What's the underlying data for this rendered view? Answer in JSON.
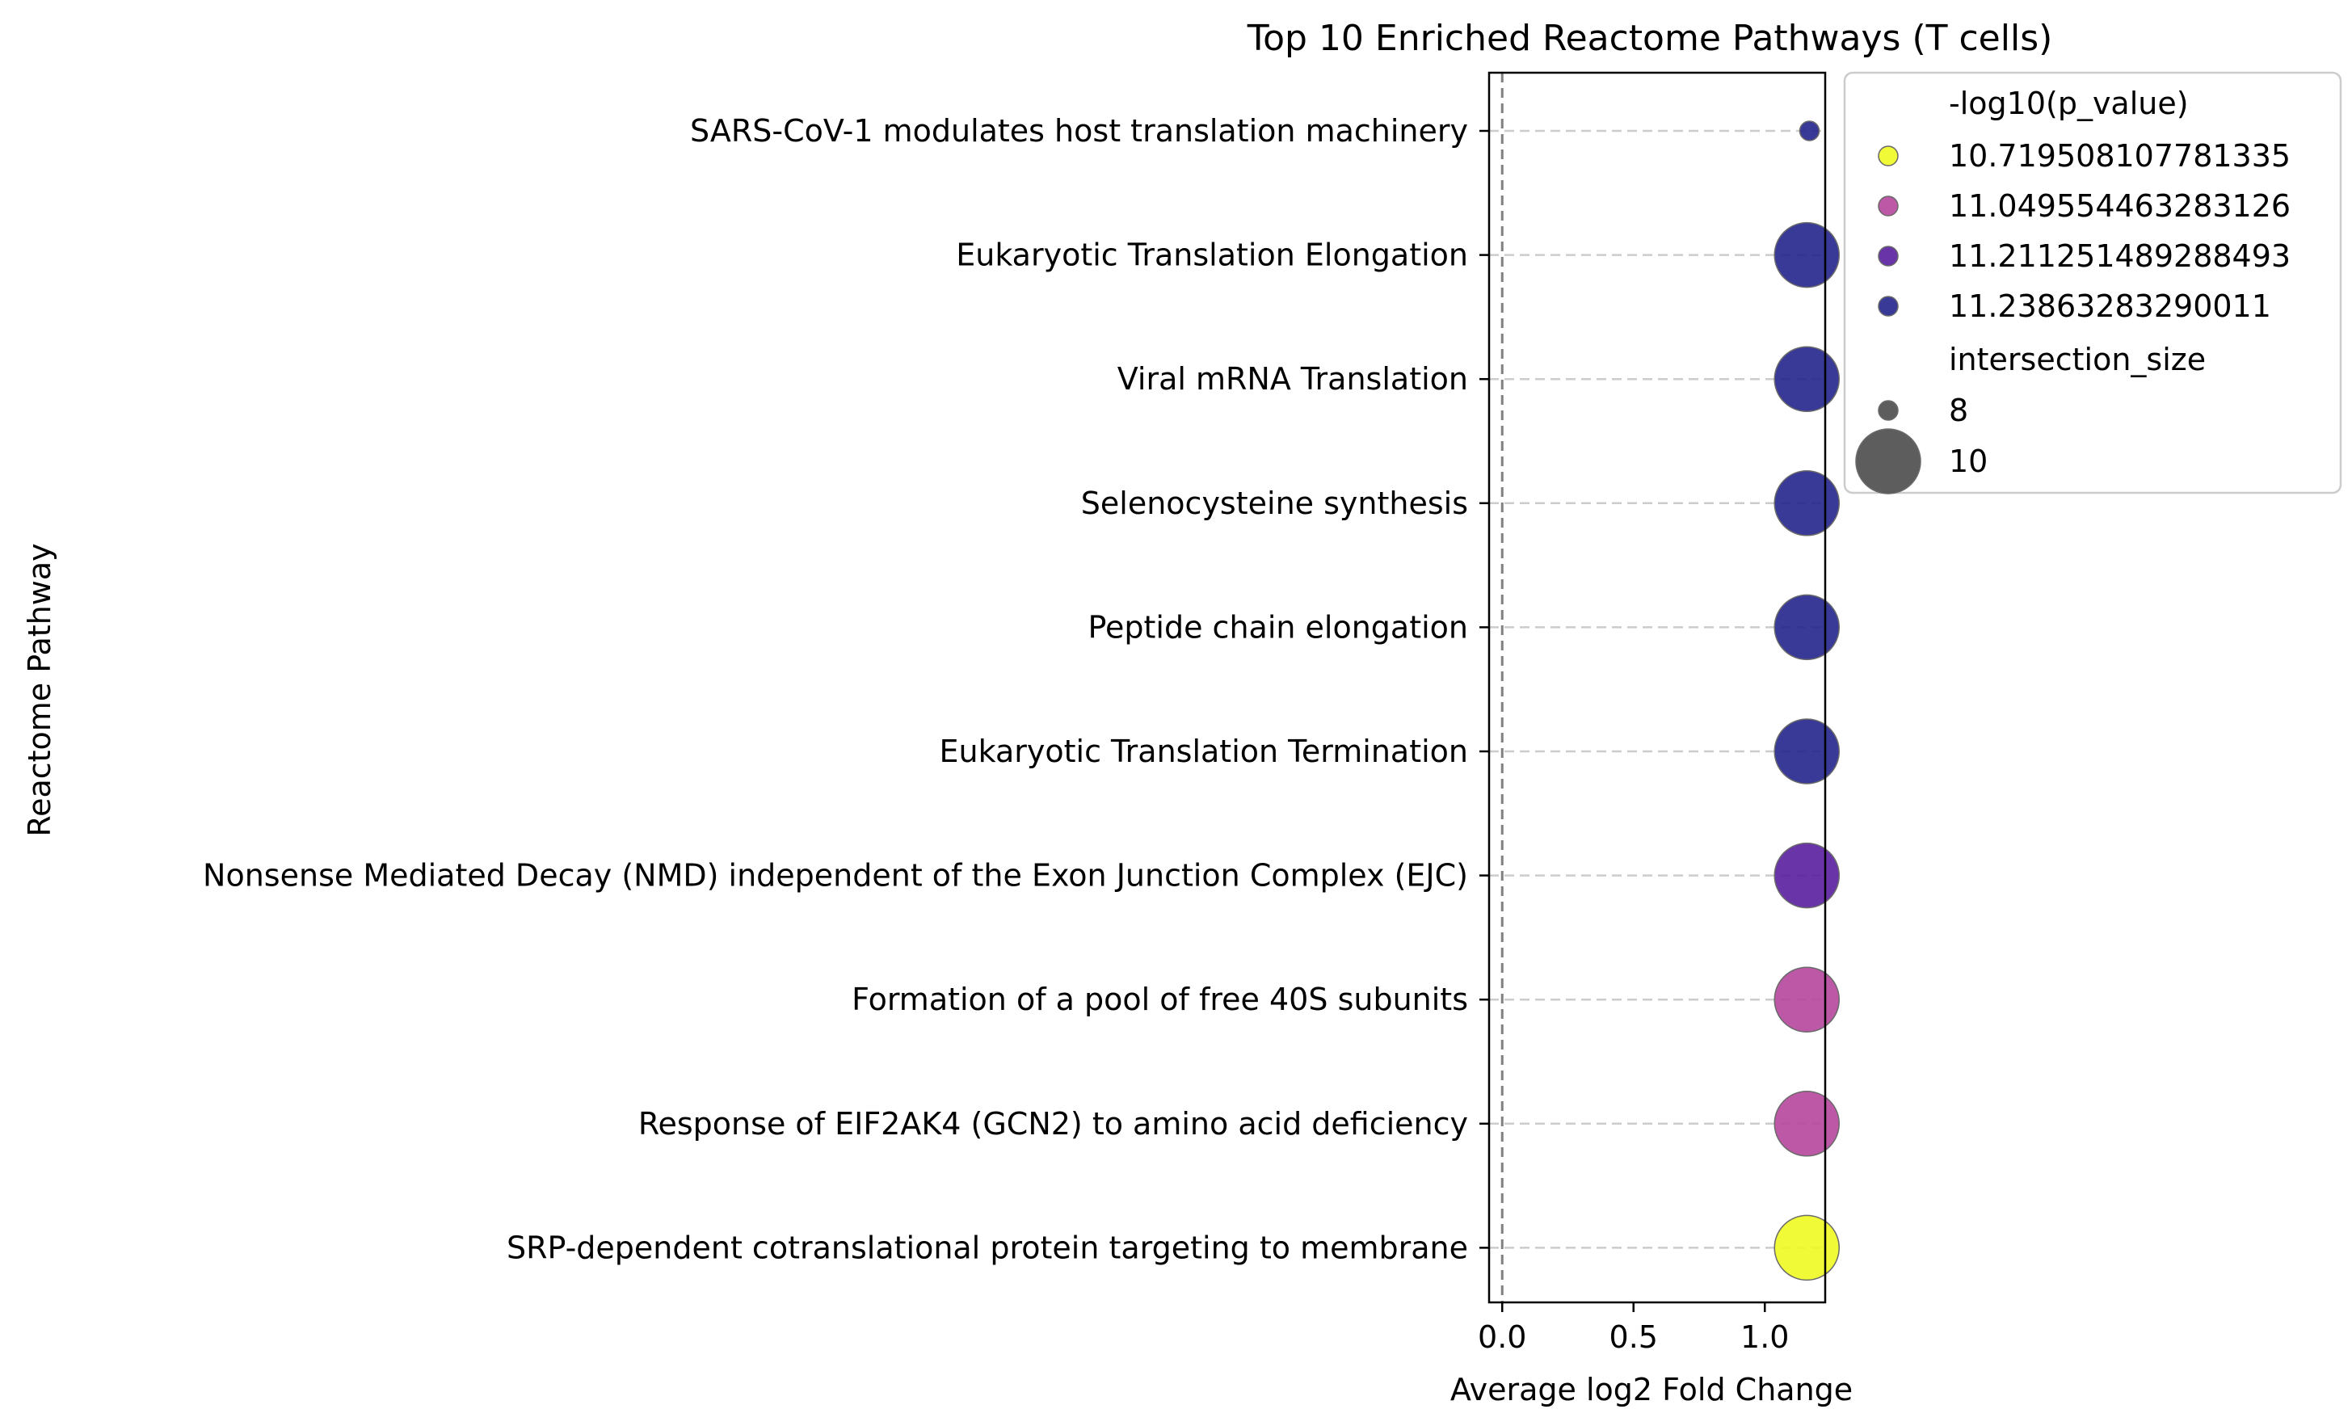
{
  "chart_data": {
    "type": "scatter",
    "title": "Top 10 Enriched Reactome Pathways (T cells)",
    "xlabel": "Average log2 Fold Change",
    "ylabel": "Reactome Pathway",
    "xlim": [
      -0.05,
      1.23
    ],
    "xticks": [
      {
        "value": 0.0,
        "label": "0.0"
      },
      {
        "value": 0.5,
        "label": "0.5"
      },
      {
        "value": 1.0,
        "label": "1.0"
      }
    ],
    "reference_line_x": 0,
    "grid": "horizontal dashed at each category",
    "legend_placement": "outside-upper-right",
    "color_legend": {
      "title": "-log10(p_value)",
      "entries": [
        {
          "label": "10.719508107781335",
          "color": "#f0f921"
        },
        {
          "label": "11.049554463283126",
          "color": "#b6469c"
        },
        {
          "label": "11.211251489288493",
          "color": "#5a1ea0"
        },
        {
          "label": "11.23863283290011",
          "color": "#23238c"
        }
      ]
    },
    "size_legend": {
      "title": "intersection_size",
      "entries": [
        {
          "label": "8",
          "size": 8
        },
        {
          "label": "10",
          "size": 10
        }
      ]
    },
    "points": [
      {
        "pathway": "SARS-CoV-1 modulates host translation machinery",
        "x": 1.17,
        "neglog10p": 11.23863283290011,
        "size": 8,
        "color": "#23238c"
      },
      {
        "pathway": "Eukaryotic Translation Elongation",
        "x": 1.16,
        "neglog10p": 11.23863283290011,
        "size": 10,
        "color": "#23238c"
      },
      {
        "pathway": "Viral mRNA Translation",
        "x": 1.16,
        "neglog10p": 11.23863283290011,
        "size": 10,
        "color": "#23238c"
      },
      {
        "pathway": "Selenocysteine synthesis",
        "x": 1.16,
        "neglog10p": 11.23863283290011,
        "size": 10,
        "color": "#23238c"
      },
      {
        "pathway": "Peptide chain elongation",
        "x": 1.16,
        "neglog10p": 11.23863283290011,
        "size": 10,
        "color": "#23238c"
      },
      {
        "pathway": "Eukaryotic Translation Termination",
        "x": 1.16,
        "neglog10p": 11.23863283290011,
        "size": 10,
        "color": "#23238c"
      },
      {
        "pathway": "Nonsense Mediated Decay (NMD) independent of the Exon Junction Complex (EJC)",
        "x": 1.16,
        "neglog10p": 11.211251489288493,
        "size": 10,
        "color": "#5a1ea0"
      },
      {
        "pathway": "Formation of a pool of free 40S subunits",
        "x": 1.16,
        "neglog10p": 11.049554463283126,
        "size": 10,
        "color": "#b6469c"
      },
      {
        "pathway": "Response of EIF2AK4 (GCN2) to amino acid deficiency",
        "x": 1.16,
        "neglog10p": 11.049554463283126,
        "size": 10,
        "color": "#b6469c"
      },
      {
        "pathway": "SRP-dependent cotranslational protein targeting to membrane",
        "x": 1.16,
        "neglog10p": 10.719508107781335,
        "size": 10,
        "color": "#f0f921"
      }
    ]
  }
}
